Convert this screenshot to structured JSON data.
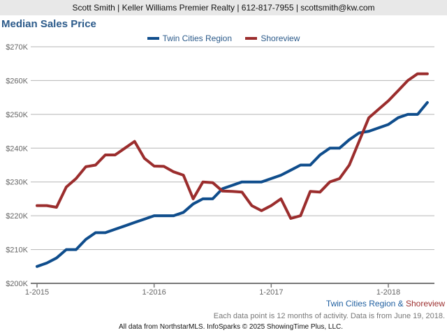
{
  "header": {
    "contact": "Scott Smith | Keller Williams Premier Realty | 612-817-7955 | scottsmith@kw.com"
  },
  "chart_data": {
    "type": "line",
    "title": "Median Sales Price",
    "xlabel": "",
    "ylabel": "",
    "ylim": [
      200000,
      270000
    ],
    "y_ticks": [
      200000,
      210000,
      220000,
      230000,
      240000,
      250000,
      260000,
      270000
    ],
    "y_tick_labels": [
      "$200K",
      "$210K",
      "$220K",
      "$230K",
      "$240K",
      "$250K",
      "$260K",
      "$270K"
    ],
    "x_tick_labels": [
      "1-2015",
      "1-2016",
      "1-2017",
      "1-2018"
    ],
    "x_tick_indices": [
      0,
      12,
      24,
      36
    ],
    "x_start": "1-2015",
    "x_end": "5-2018",
    "grid": true,
    "legend_position": "top-center",
    "series": [
      {
        "name": "Twin Cities Region",
        "color": "#0f4d8c",
        "values": [
          205000,
          206000,
          207500,
          210000,
          210000,
          213000,
          215000,
          215000,
          216000,
          217000,
          218000,
          219000,
          220000,
          220000,
          220000,
          221000,
          223500,
          225000,
          225000,
          228000,
          229000,
          230000,
          230000,
          230000,
          231000,
          232000,
          233500,
          235000,
          235000,
          238000,
          240000,
          240000,
          242500,
          244500,
          245000,
          246000,
          247000,
          249000,
          250000,
          250000,
          253500
        ]
      },
      {
        "name": "Shoreview",
        "color": "#9b2d2d",
        "values": [
          223000,
          223000,
          222500,
          228500,
          231000,
          234500,
          235000,
          238000,
          238000,
          240000,
          242000,
          237000,
          234700,
          234600,
          233000,
          232000,
          225000,
          230000,
          229800,
          227300,
          227200,
          227000,
          223000,
          221500,
          223000,
          225000,
          219200,
          220000,
          227200,
          227000,
          230000,
          231000,
          235000,
          242000,
          249000,
          251500,
          254000,
          257000,
          260000,
          262000,
          262000
        ]
      }
    ]
  },
  "legend": {
    "series1": "Twin Cities Region",
    "series2": "Shoreview"
  },
  "footer": {
    "region_a": "Twin Cities Region",
    "amp": " & ",
    "region_b": "Shoreview",
    "note": "Each data point is 12 months of activity. Data is from June 19, 2018.",
    "credit": "All data from NorthstarMLS. InfoSparks © 2025 ShowingTime Plus, LLC."
  }
}
